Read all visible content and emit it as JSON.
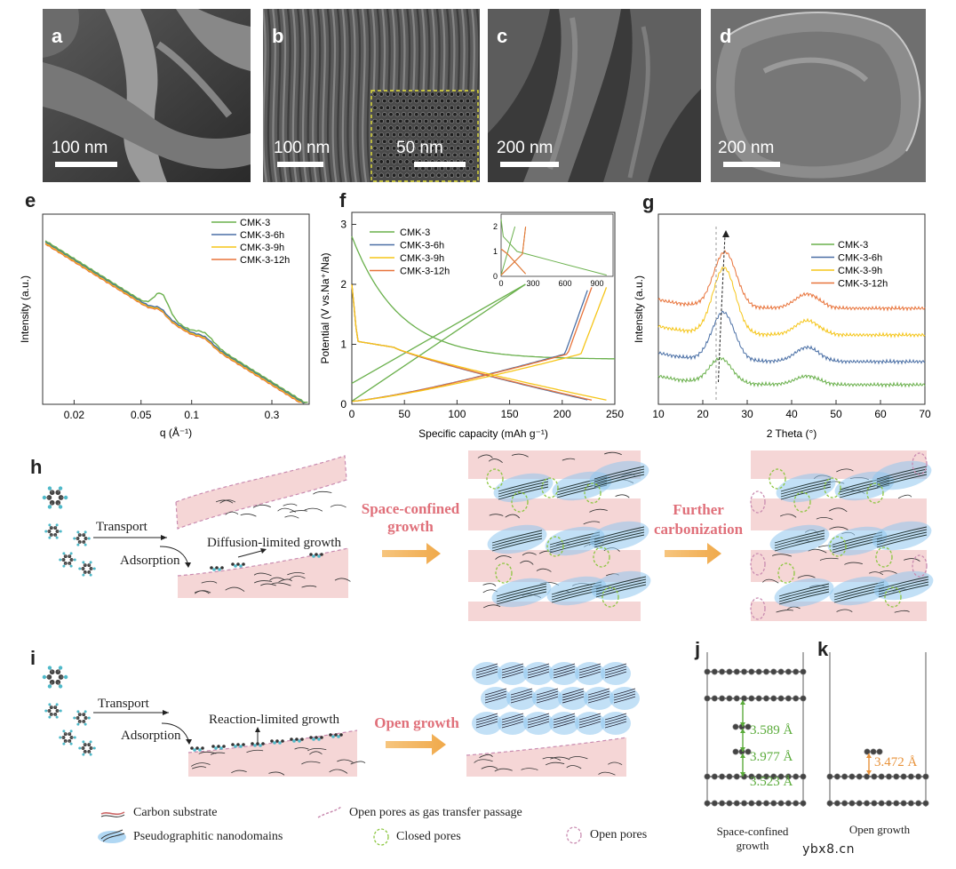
{
  "panels": {
    "a": {
      "label": "a",
      "scale": "100 nm"
    },
    "b": {
      "label": "b",
      "scale": "100 nm",
      "inset_scale": "50 nm"
    },
    "c": {
      "label": "c",
      "scale": "200 nm"
    },
    "d": {
      "label": "d",
      "scale": "200 nm"
    }
  },
  "colors": {
    "cmk3": "#6ab04c",
    "cmk6": "#4a6fa5",
    "cmk9": "#f5c518",
    "cmk12": "#e8733a"
  },
  "chart_data": [
    {
      "id": "e",
      "type": "line",
      "label": "e",
      "xlabel": "q (Å⁻¹)",
      "ylabel": "Intensity (a.u.)",
      "xscale": "log",
      "xticks": [
        "0.02",
        "0.05",
        "0.1",
        "0.3"
      ],
      "legend": [
        "CMK-3",
        "CMK-3-6h",
        "CMK-3-9h",
        "CMK-3-12h"
      ]
    },
    {
      "id": "f",
      "type": "line",
      "label": "f",
      "xlabel": "Specific capacity (mAh g⁻¹)",
      "ylabel": "Potential (V vs.Na⁺/Na)",
      "xlim": [
        0,
        250
      ],
      "ylim": [
        0,
        3.2
      ],
      "xticks": [
        "0",
        "50",
        "100",
        "150",
        "200",
        "250"
      ],
      "yticks": [
        "0",
        "1",
        "2",
        "3"
      ],
      "legend": [
        "CMK-3",
        "CMK-3-6h",
        "CMK-3-9h",
        "CMK-3-12h"
      ],
      "inset": {
        "xticks": [
          "0",
          "300",
          "600",
          "900"
        ],
        "yticks": [
          "0",
          "1",
          "2"
        ]
      }
    },
    {
      "id": "g",
      "type": "line",
      "label": "g",
      "xlabel": "2 Theta (°)",
      "ylabel": "Intensity (a.u.)",
      "xlim": [
        10,
        70
      ],
      "xticks": [
        "10",
        "20",
        "30",
        "40",
        "50",
        "60",
        "70"
      ],
      "legend": [
        "CMK-3",
        "CMK-3-6h",
        "CMK-3-9h",
        "CMK-3-12h"
      ]
    }
  ],
  "schematic_h": {
    "label": "h",
    "transport": "Transport",
    "adsorption": "Adsorption",
    "growth": "Diffusion-limited growth",
    "step1": [
      "Space-confined",
      "growth"
    ],
    "step2": [
      "Further",
      "carbonization"
    ]
  },
  "schematic_i": {
    "label": "i",
    "transport": "Transport",
    "adsorption": "Adsorption",
    "growth": "Reaction-limited growth",
    "step1": "Open growth"
  },
  "legend_bottom": {
    "carbon": "Carbon substrate",
    "pseudo": "Pseudographitic nanodomains",
    "open_passage": "Open pores as gas transfer passage",
    "closed": "Closed pores",
    "open": "Open pores"
  },
  "panel_j": {
    "label": "j",
    "d1": "3.589 Å",
    "d2": "3.977 Å",
    "d3": "3.523 Å",
    "caption": [
      "Space-confined",
      "growth"
    ]
  },
  "panel_k": {
    "label": "k",
    "d1": "3.472 Å",
    "caption": "Open growth"
  },
  "watermark": "ybx8.cn"
}
